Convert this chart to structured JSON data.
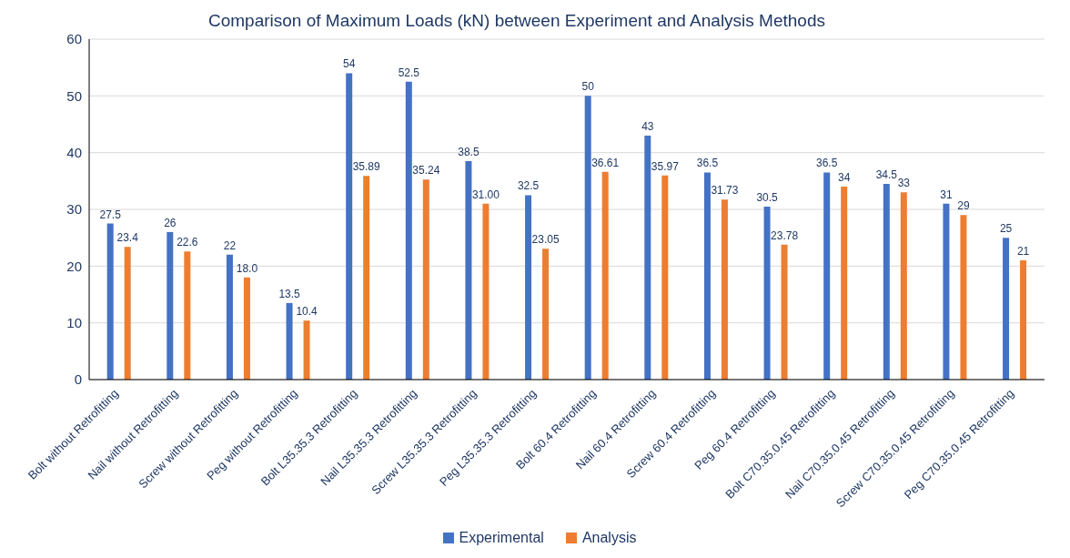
{
  "chart_data": {
    "type": "bar",
    "title": "Comparison of Maximum Loads (kN) between Experiment and Analysis Methods",
    "categories": [
      "Bolt without Retrofitting",
      "Nail without Retrofitting",
      "Screw without Retrofitting",
      "Peg without Retrofitting",
      "Bolt L35.35.3 Retrofitting",
      "Nail L35.35.3 Retrofitting",
      "Screw L35.35.3 Retrofitting",
      "Peg L35.35.3 Retrofitting",
      "Bolt 60.4 Retrofitting",
      "Nail 60.4 Retrofitting",
      "Screw 60.4 Retrofitting",
      "Peg 60.4 Retrofitting",
      "Bolt C70.35.0.45 Retrofitting",
      "Nail C70.35.0.45 Retrofitting",
      "Screw C70.35.0.45 Retrofitting",
      "Peg C70.35.0.45 Retrofitting"
    ],
    "series": [
      {
        "name": "Experimental",
        "color": "#4472c4",
        "values": [
          27.5,
          26,
          22,
          13.5,
          54,
          52.5,
          38.5,
          32.5,
          50,
          43,
          36.5,
          30.5,
          36.5,
          34.5,
          31,
          25
        ],
        "value_labels": [
          "27.5",
          "26",
          "22",
          "13.5",
          "54",
          "52.5",
          "38.5",
          "32.5",
          "50",
          "43",
          "36.5",
          "30.5",
          "36.5",
          "34.5",
          "31",
          "25"
        ]
      },
      {
        "name": "Analysis",
        "color": "#ed7d31",
        "values": [
          23.4,
          22.6,
          18.0,
          10.4,
          35.89,
          35.24,
          31.0,
          23.05,
          36.61,
          35.97,
          31.73,
          23.78,
          34,
          33,
          29,
          21
        ],
        "value_labels": [
          "23.4",
          "22.6",
          "18.0",
          "10.4",
          "35.89",
          "35.24",
          "31.00",
          "23.05",
          "36.61",
          "35.97",
          "31.73",
          "23.78",
          "34",
          "33",
          "29",
          "21"
        ]
      }
    ],
    "ylim": [
      0,
      60
    ],
    "yticks": [
      0,
      10,
      20,
      30,
      40,
      50,
      60
    ],
    "grid": "y",
    "legend": "bottom"
  }
}
